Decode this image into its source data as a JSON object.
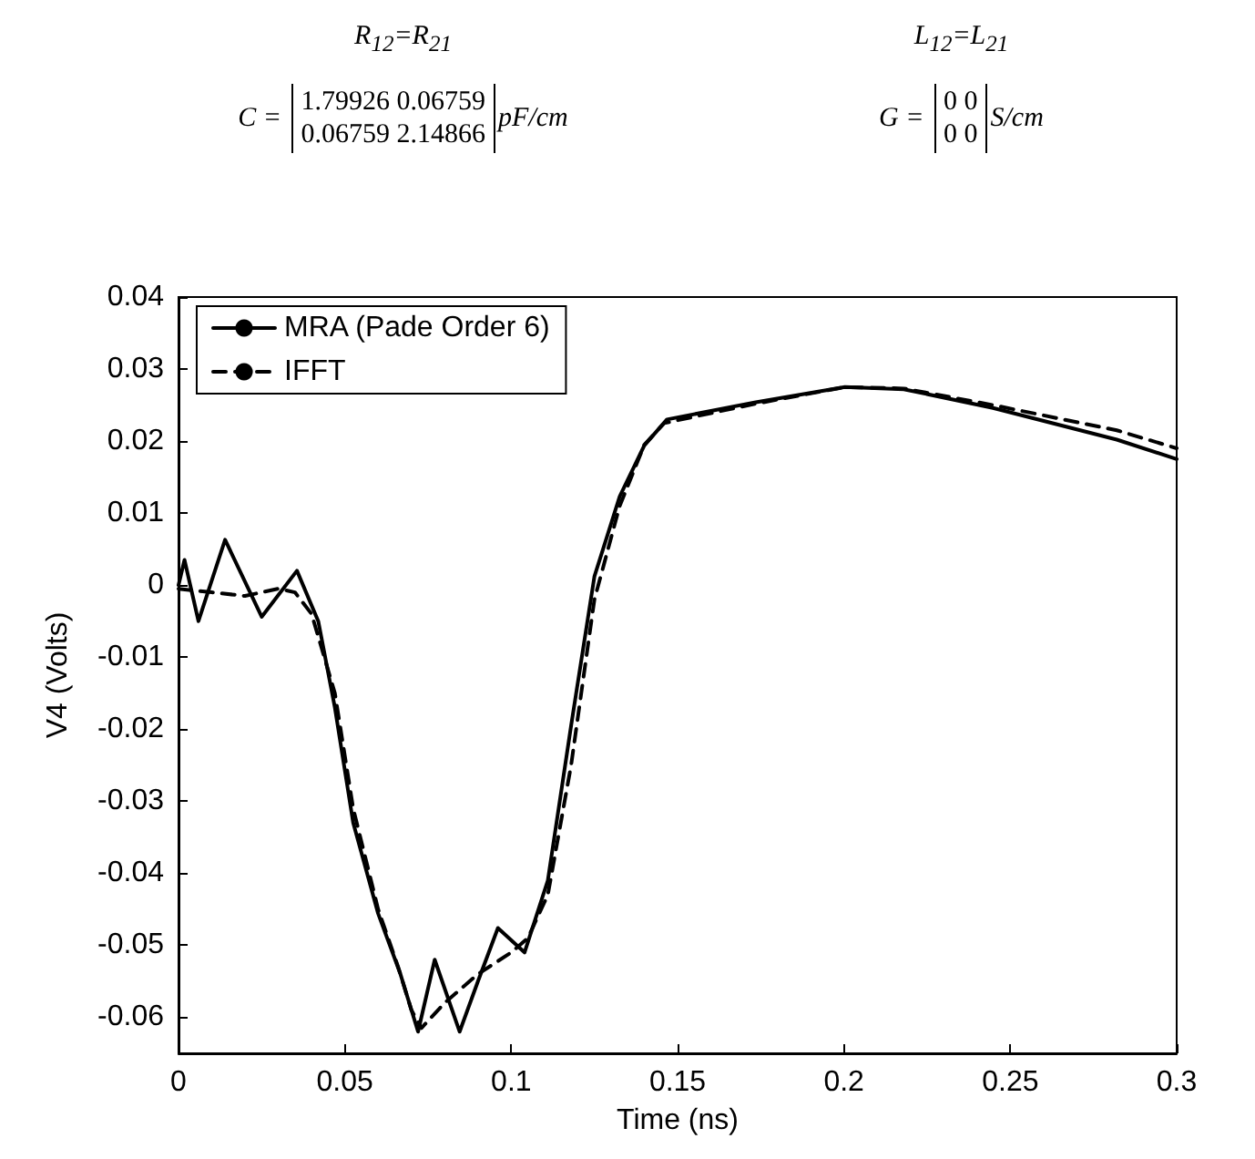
{
  "chart_data": {
    "type": "line",
    "annotations": [
      "R$_{12}$=R$_{21}$",
      "L$_{12}$=L$_{21}$",
      "C = \n1.79926 0.06759\n0.06759 2.14866\npF/cm",
      "G = \n0 0\n0 0\nS/cm"
    ],
    "xlabel": "Time (ns)",
    "ylabel": "V4 (Volts)",
    "xlim": [
      0,
      0.3
    ],
    "xticks": [
      0,
      0.05,
      0.1,
      0.15,
      0.2,
      0.25,
      0.3
    ],
    "ylim": [
      -0.065,
      0.04
    ],
    "yticks": [
      -0.06,
      -0.05,
      -0.04,
      -0.03,
      -0.02,
      -0.01,
      0,
      0.01,
      0.02,
      0.03,
      0.04
    ],
    "grid": false,
    "legend": "top left",
    "marker": "none",
    "series": [
      {
        "name": "MRA (Pade Order 6)",
        "color": "#000000",
        "line_style": "solid",
        "x": [
          0,
          0.0018,
          0.006,
          0.014,
          0.025,
          0.0356,
          0.042,
          0.047,
          0.0525,
          0.06,
          0.0667,
          0.072,
          0.077,
          0.0845,
          0.09,
          0.096,
          0.104,
          0.111,
          0.118,
          0.125,
          0.1326,
          0.14,
          0.1468,
          0.1735,
          0.2003,
          0.218,
          0.2448,
          0.282,
          0.3
        ],
        "values": [
          0,
          0.0035,
          -0.005,
          0.0063,
          -0.0044,
          0.002,
          -0.005,
          -0.017,
          -0.033,
          -0.0456,
          -0.054,
          -0.062,
          -0.052,
          -0.062,
          -0.055,
          -0.0476,
          -0.051,
          -0.041,
          -0.0195,
          0.0012,
          0.0123,
          0.0194,
          0.023,
          0.0254,
          0.0275,
          0.0272,
          0.0246,
          0.0202,
          0.0175
        ]
      },
      {
        "name": "IFFT",
        "color": "#000000",
        "line_style": "dashed",
        "x": [
          0,
          0.01,
          0.02,
          0.03,
          0.035,
          0.04,
          0.047,
          0.0525,
          0.06,
          0.066,
          0.07,
          0.073,
          0.08,
          0.09,
          0.1,
          0.105,
          0.111,
          0.118,
          0.125,
          0.1326,
          0.14,
          0.146,
          0.1735,
          0.2003,
          0.218,
          0.2448,
          0.282,
          0.3
        ],
        "values": [
          -0.0005,
          -0.001,
          -0.0015,
          -0.0005,
          -0.001,
          -0.004,
          -0.015,
          -0.031,
          -0.045,
          -0.053,
          -0.059,
          -0.0615,
          -0.058,
          -0.054,
          -0.051,
          -0.049,
          -0.043,
          -0.025,
          -0.002,
          0.011,
          0.0195,
          0.0225,
          0.0252,
          0.0275,
          0.0273,
          0.025,
          0.0215,
          0.019
        ]
      }
    ]
  }
}
